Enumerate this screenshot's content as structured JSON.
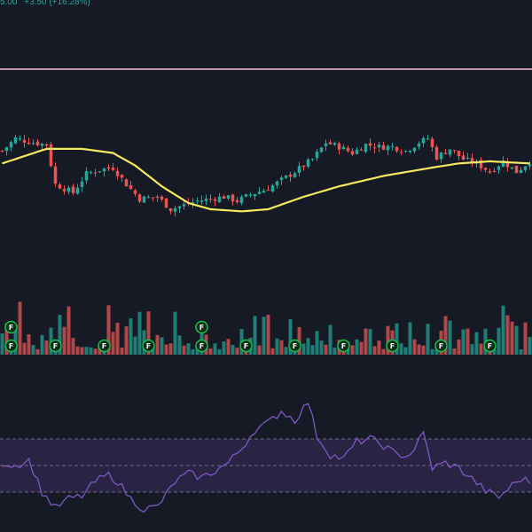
{
  "header": {
    "price_fragment": "5.00",
    "change": "+3.50 (+16.28%)"
  },
  "colors": {
    "background": "#161a25",
    "up": "#26a69a",
    "down": "#ef5350",
    "volume_up": "#1f7f76",
    "volume_down": "#b2474a",
    "moving_average": "#f5e960",
    "horizontal_line": "#f1bcd4",
    "rsi_line": "#7e57c2",
    "rsi_band": "#2a2444",
    "event_marker": "#16c24d"
  },
  "chart_data": {
    "type": "candlestick",
    "title": "",
    "grid": false,
    "price_panel": {
      "y_range": [
        0,
        100
      ],
      "horizontal_line_level": 95,
      "candle_count": 120,
      "close_path_anchors": [
        [
          0,
          68
        ],
        [
          3,
          74
        ],
        [
          7,
          72
        ],
        [
          10,
          71
        ],
        [
          12,
          52
        ],
        [
          16,
          48
        ],
        [
          19,
          57
        ],
        [
          22,
          59
        ],
        [
          25,
          60
        ],
        [
          28,
          52
        ],
        [
          31,
          45
        ],
        [
          35,
          46
        ],
        [
          38,
          40
        ],
        [
          41,
          42
        ],
        [
          44,
          44
        ],
        [
          47,
          45
        ],
        [
          50,
          46
        ],
        [
          53,
          44
        ],
        [
          56,
          47
        ],
        [
          60,
          50
        ],
        [
          63,
          54
        ],
        [
          66,
          58
        ],
        [
          70,
          64
        ],
        [
          73,
          72
        ],
        [
          76,
          70
        ],
        [
          79,
          67
        ],
        [
          82,
          71
        ],
        [
          85,
          70
        ],
        [
          88,
          70
        ],
        [
          91,
          68
        ],
        [
          94,
          72
        ],
        [
          96,
          74
        ],
        [
          98,
          65
        ],
        [
          101,
          69
        ],
        [
          104,
          64
        ],
        [
          107,
          62
        ],
        [
          110,
          58
        ],
        [
          113,
          63
        ],
        [
          116,
          58
        ],
        [
          119,
          63
        ]
      ],
      "moving_average_anchors": [
        [
          0,
          62
        ],
        [
          10,
          69
        ],
        [
          18,
          69
        ],
        [
          25,
          67
        ],
        [
          30,
          61
        ],
        [
          36,
          51
        ],
        [
          42,
          43
        ],
        [
          47,
          40
        ],
        [
          54,
          39
        ],
        [
          60,
          40
        ],
        [
          68,
          46
        ],
        [
          76,
          51
        ],
        [
          86,
          56
        ],
        [
          97,
          60
        ],
        [
          103,
          62
        ],
        [
          110,
          63
        ],
        [
          119,
          62
        ]
      ]
    },
    "volume_panel": {
      "bar_count": 120,
      "up_down_pattern": "mixed",
      "events": [
        {
          "label": "F",
          "bar": 2
        },
        {
          "label": "F",
          "bar": 2,
          "row": 2
        },
        {
          "label": "F",
          "bar": 12
        },
        {
          "label": "F",
          "bar": 23
        },
        {
          "label": "F",
          "bar": 33
        },
        {
          "label": "F",
          "bar": 45
        },
        {
          "label": "F",
          "bar": 45,
          "row": 2
        },
        {
          "label": "F",
          "bar": 55
        },
        {
          "label": "F",
          "bar": 66
        },
        {
          "label": "F",
          "bar": 77
        },
        {
          "label": "F",
          "bar": 88
        },
        {
          "label": "F",
          "bar": 99
        },
        {
          "label": "F",
          "bar": 110
        }
      ]
    },
    "rsi_panel": {
      "y_range": [
        0,
        100
      ],
      "band": [
        30,
        70
      ],
      "midline": 50,
      "anchors": [
        [
          0,
          52
        ],
        [
          3,
          50
        ],
        [
          6,
          54
        ],
        [
          9,
          30
        ],
        [
          12,
          18
        ],
        [
          15,
          25
        ],
        [
          18,
          27
        ],
        [
          21,
          38
        ],
        [
          24,
          43
        ],
        [
          26,
          38
        ],
        [
          29,
          25
        ],
        [
          32,
          17
        ],
        [
          35,
          19
        ],
        [
          37,
          28
        ],
        [
          39,
          38
        ],
        [
          42,
          44
        ],
        [
          45,
          41
        ],
        [
          48,
          46
        ],
        [
          51,
          52
        ],
        [
          54,
          63
        ],
        [
          57,
          77
        ],
        [
          60,
          82
        ],
        [
          63,
          91
        ],
        [
          66,
          84
        ],
        [
          69,
          98
        ],
        [
          71,
          72
        ],
        [
          74,
          58
        ],
        [
          77,
          55
        ],
        [
          80,
          68
        ],
        [
          83,
          70
        ],
        [
          86,
          65
        ],
        [
          89,
          58
        ],
        [
          92,
          58
        ],
        [
          95,
          74
        ],
        [
          97,
          48
        ],
        [
          100,
          52
        ],
        [
          103,
          48
        ],
        [
          106,
          40
        ],
        [
          109,
          31
        ],
        [
          112,
          26
        ],
        [
          115,
          35
        ],
        [
          117,
          40
        ],
        [
          119,
          38
        ]
      ]
    }
  }
}
